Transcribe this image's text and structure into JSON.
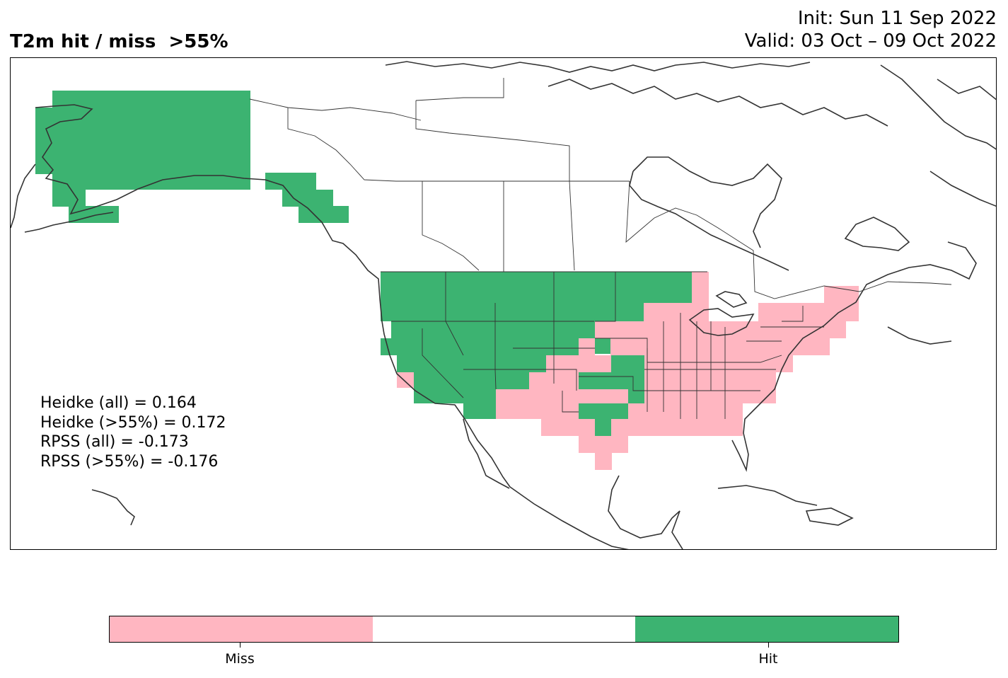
{
  "header": {
    "title": "T2m hit / miss  >55%",
    "init": "Init: Sun 11 Sep 2022",
    "valid": "Valid: 03 Oct – 09 Oct 2022"
  },
  "stats": {
    "heidke_all": "Heidke (all) = 0.164",
    "heidke_55": "Heidke (>55%) = 0.172",
    "rpss_all": "RPSS (all) = -0.173",
    "rpss_55": "RPSS (>55%) = -0.176"
  },
  "colors": {
    "hit": "#3cb371",
    "miss": "#ffb6c1",
    "neutral": "#ffffff",
    "coastline": "#333333"
  },
  "legend": {
    "miss_label": "Miss",
    "hit_label": "Hit"
  }
}
